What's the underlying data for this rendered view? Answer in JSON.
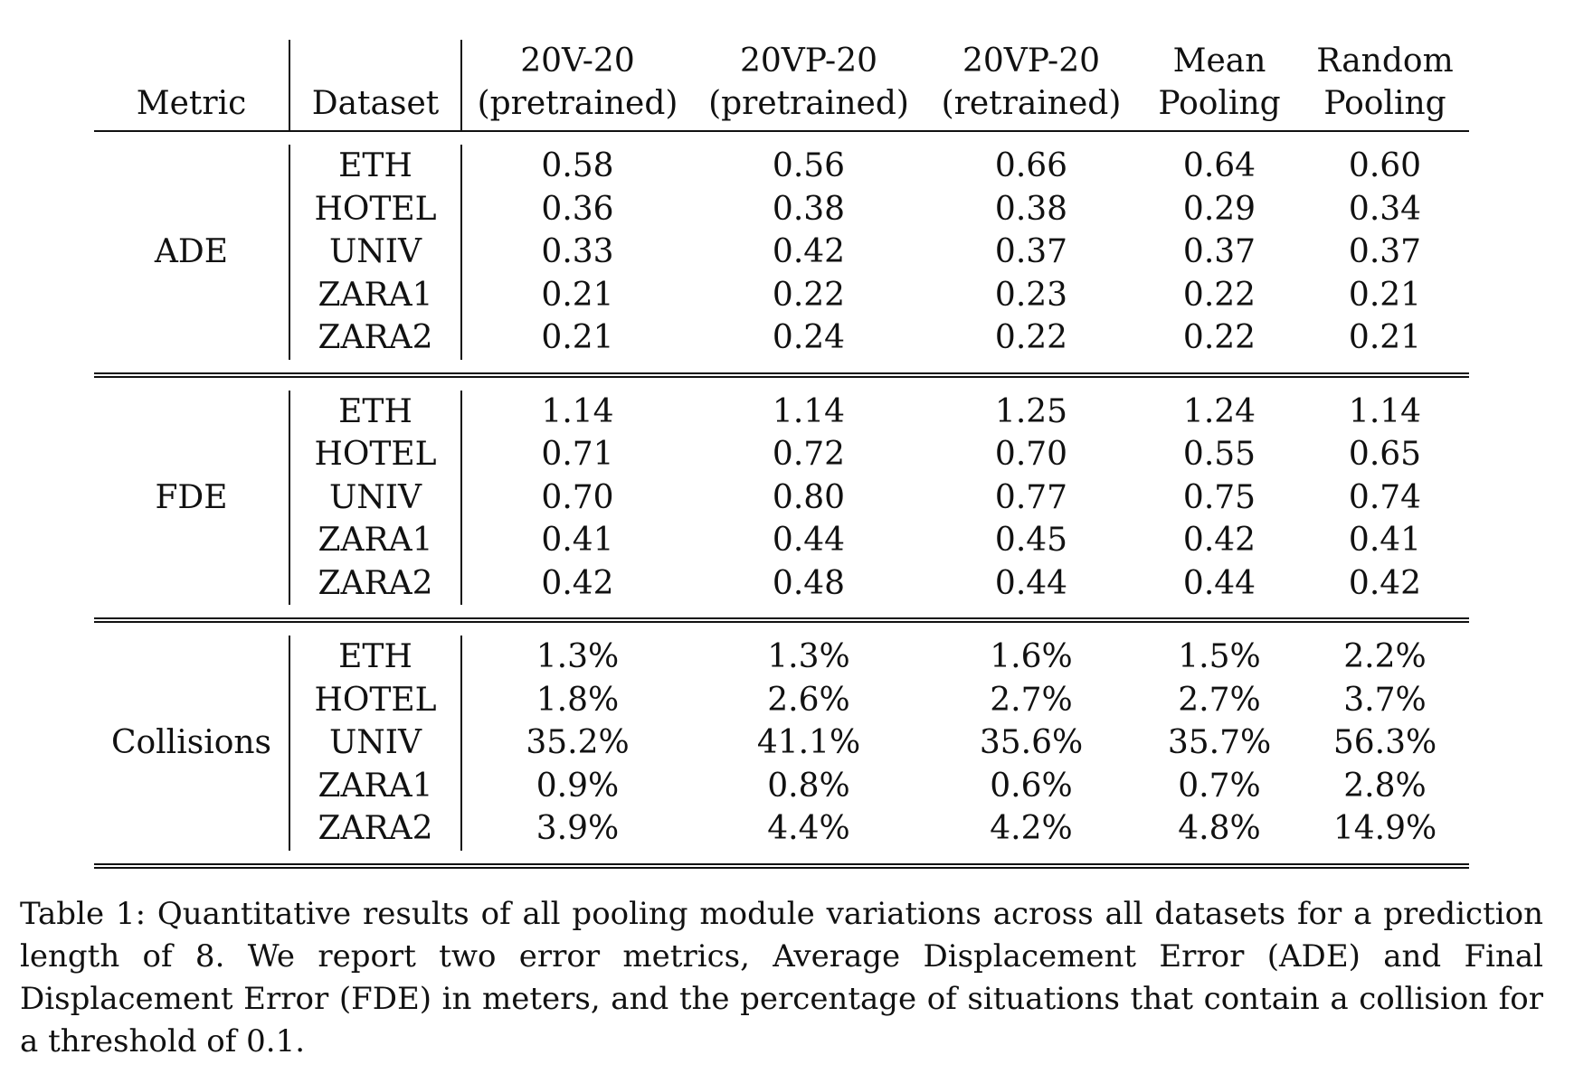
{
  "table": {
    "headers": {
      "metric": "Metric",
      "dataset": "Dataset",
      "columns": [
        {
          "line1": "20V-20",
          "line2": "(pretrained)"
        },
        {
          "line1": "20VP-20",
          "line2": "(pretrained)"
        },
        {
          "line1": "20VP-20",
          "line2": "(retrained)"
        },
        {
          "line1": "Mean",
          "line2": "Pooling"
        },
        {
          "line1": "Random",
          "line2": "Pooling"
        }
      ]
    },
    "groups": [
      {
        "metric": "ADE",
        "rows": [
          {
            "dataset": "ETH",
            "values": [
              "0.58",
              "0.56",
              "0.66",
              "0.64",
              "0.60"
            ]
          },
          {
            "dataset": "HOTEL",
            "values": [
              "0.36",
              "0.38",
              "0.38",
              "0.29",
              "0.34"
            ]
          },
          {
            "dataset": "UNIV",
            "values": [
              "0.33",
              "0.42",
              "0.37",
              "0.37",
              "0.37"
            ]
          },
          {
            "dataset": "ZARA1",
            "values": [
              "0.21",
              "0.22",
              "0.23",
              "0.22",
              "0.21"
            ]
          },
          {
            "dataset": "ZARA2",
            "values": [
              "0.21",
              "0.24",
              "0.22",
              "0.22",
              "0.21"
            ]
          }
        ]
      },
      {
        "metric": "FDE",
        "rows": [
          {
            "dataset": "ETH",
            "values": [
              "1.14",
              "1.14",
              "1.25",
              "1.24",
              "1.14"
            ]
          },
          {
            "dataset": "HOTEL",
            "values": [
              "0.71",
              "0.72",
              "0.70",
              "0.55",
              "0.65"
            ]
          },
          {
            "dataset": "UNIV",
            "values": [
              "0.70",
              "0.80",
              "0.77",
              "0.75",
              "0.74"
            ]
          },
          {
            "dataset": "ZARA1",
            "values": [
              "0.41",
              "0.44",
              "0.45",
              "0.42",
              "0.41"
            ]
          },
          {
            "dataset": "ZARA2",
            "values": [
              "0.42",
              "0.48",
              "0.44",
              "0.44",
              "0.42"
            ]
          }
        ]
      },
      {
        "metric": "Collisions",
        "rows": [
          {
            "dataset": "ETH",
            "values": [
              "1.3%",
              "1.3%",
              "1.6%",
              "1.5%",
              "2.2%"
            ]
          },
          {
            "dataset": "HOTEL",
            "values": [
              "1.8%",
              "2.6%",
              "2.7%",
              "2.7%",
              "3.7%"
            ]
          },
          {
            "dataset": "UNIV",
            "values": [
              "35.2%",
              "41.1%",
              "35.6%",
              "35.7%",
              "56.3%"
            ]
          },
          {
            "dataset": "ZARA1",
            "values": [
              "0.9%",
              "0.8%",
              "0.6%",
              "0.7%",
              "2.8%"
            ]
          },
          {
            "dataset": "ZARA2",
            "values": [
              "3.9%",
              "4.4%",
              "4.2%",
              "4.8%",
              "14.9%"
            ]
          }
        ]
      }
    ]
  },
  "caption": "Table 1: Quantitative results of all pooling module variations across all datasets for a prediction length of 8.  We report two error metrics, Average Displacement Error (ADE) and Final Displacement Error (FDE) in meters, and the percentage of situations that contain a collision for a threshold of 0.1."
}
